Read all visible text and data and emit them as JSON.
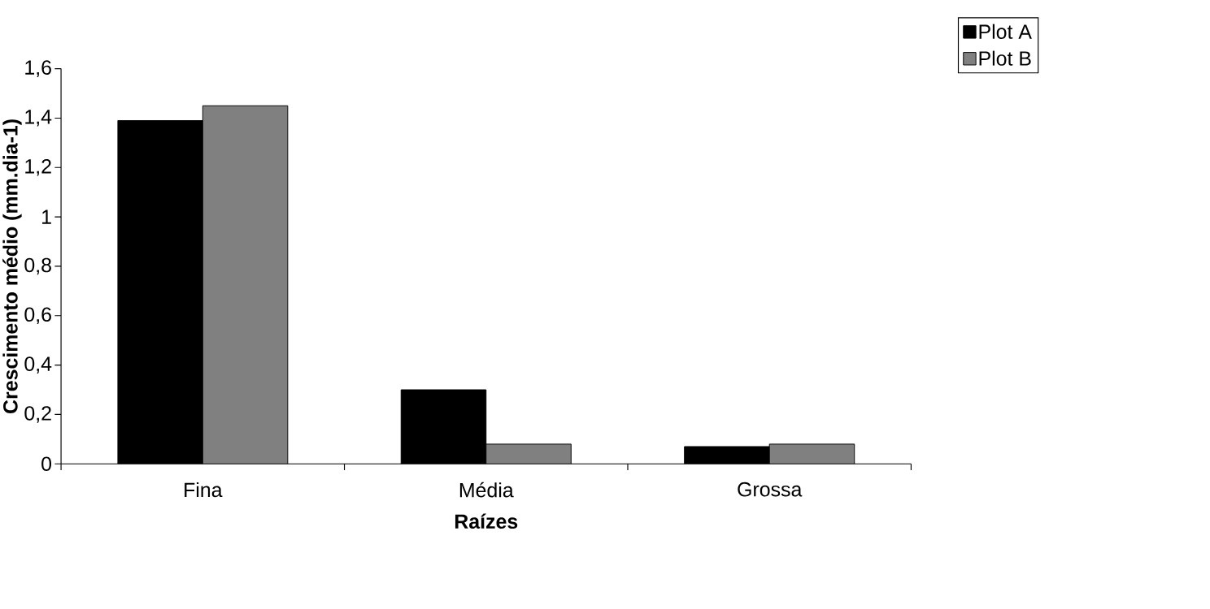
{
  "chart_data": {
    "type": "bar",
    "xlabel": "Raízes",
    "ylabel": "Crescimento médio (mm.dia-1)",
    "categories": [
      "Fina",
      "Média",
      "Grossa"
    ],
    "series": [
      {
        "name": "Plot A",
        "color": "#000000",
        "values": [
          1.39,
          0.3,
          0.07
        ]
      },
      {
        "name": "Plot B",
        "color": "#808080",
        "values": [
          1.45,
          0.08,
          0.08
        ]
      }
    ],
    "ylim": [
      0,
      1.6
    ],
    "yticks": [
      0,
      {
        "value": 0.2,
        "label": "0,2"
      },
      {
        "value": 0.4,
        "label": "0,4"
      },
      {
        "value": 0.6,
        "label": "0,6"
      },
      {
        "value": 0.8,
        "label": "0,8"
      },
      1,
      {
        "value": 1.2,
        "label": "1,2"
      },
      {
        "value": 1.4,
        "label": "1,4"
      },
      {
        "value": 1.6,
        "label": "1,6"
      }
    ],
    "legend": "top right",
    "grid": false
  }
}
